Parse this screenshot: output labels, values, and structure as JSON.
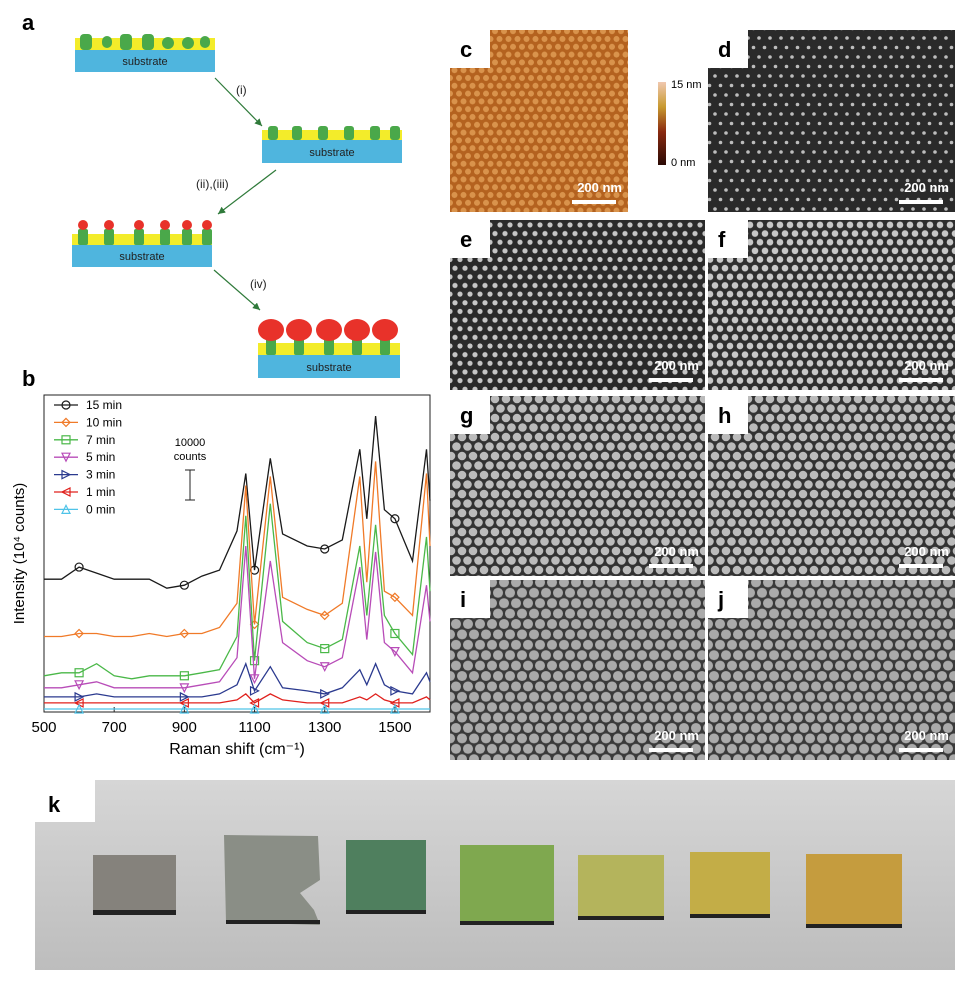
{
  "diagram": {
    "label": "a",
    "substrates": [
      "substrate",
      "substrate",
      "substrate",
      "substrate"
    ],
    "arrows": [
      "(i)",
      "(ii),(iii)",
      "(iv)"
    ]
  },
  "chart_label": "b",
  "chart_data": {
    "type": "line",
    "x_label": "Raman shift (cm⁻¹)",
    "y_label": "Intensity (10⁴ counts)",
    "annotations": [
      "10000",
      "counts"
    ],
    "x": [
      500,
      550,
      600,
      650,
      700,
      750,
      800,
      850,
      900,
      950,
      1000,
      1050,
      1075,
      1100,
      1145,
      1180,
      1250,
      1300,
      1350,
      1400,
      1420,
      1445,
      1470,
      1500,
      1550,
      1590,
      1600
    ],
    "xlim": [
      500,
      1600
    ],
    "xticks": [
      500,
      700,
      900,
      1100,
      1300,
      1500
    ],
    "ylim": [
      0,
      10.5
    ],
    "legend": "upper left",
    "series": [
      {
        "name": "15 min",
        "color": "#1a1a1a",
        "marker": "circle",
        "values": [
          4.4,
          4.4,
          4.8,
          4.6,
          4.4,
          4.4,
          4.4,
          4.1,
          4.2,
          4.5,
          4.7,
          6.0,
          7.9,
          4.7,
          8.4,
          5.9,
          5.5,
          5.4,
          5.7,
          8.7,
          6.4,
          9.8,
          6.7,
          6.4,
          5.0,
          8.7,
          7.0
        ]
      },
      {
        "name": "10 min",
        "color": "#f07a28",
        "marker": "diamond",
        "values": [
          2.5,
          2.5,
          2.6,
          2.6,
          2.5,
          2.5,
          2.6,
          2.5,
          2.6,
          2.6,
          2.8,
          3.6,
          7.5,
          2.9,
          7.8,
          3.8,
          3.4,
          3.2,
          3.6,
          7.8,
          4.3,
          8.3,
          4.0,
          3.8,
          3.2,
          7.9,
          5.5
        ]
      },
      {
        "name": "7 min",
        "color": "#4ab848",
        "marker": "square",
        "values": [
          1.2,
          1.3,
          1.3,
          1.6,
          1.2,
          1.1,
          1.2,
          1.2,
          1.2,
          1.3,
          1.4,
          2.5,
          6.5,
          1.7,
          6.9,
          3.0,
          2.3,
          2.1,
          2.4,
          5.5,
          3.2,
          6.2,
          3.2,
          2.6,
          1.9,
          5.8,
          4.0
        ]
      },
      {
        "name": "5 min",
        "color": "#b84cb8",
        "marker": "triangle-down",
        "values": [
          0.8,
          0.8,
          0.9,
          1.0,
          0.8,
          0.8,
          0.8,
          0.8,
          0.8,
          0.9,
          1.0,
          1.8,
          5.5,
          1.1,
          5.0,
          2.3,
          1.7,
          1.5,
          1.8,
          4.8,
          2.4,
          5.3,
          2.3,
          2.0,
          1.3,
          4.2,
          3.0
        ]
      },
      {
        "name": "3 min",
        "color": "#2b3a8f",
        "marker": "triangle-right",
        "values": [
          0.5,
          0.5,
          0.5,
          0.6,
          0.5,
          0.5,
          0.5,
          0.5,
          0.5,
          0.5,
          0.6,
          0.9,
          1.6,
          0.7,
          1.5,
          0.8,
          0.7,
          0.6,
          0.8,
          1.4,
          0.9,
          1.6,
          0.9,
          0.7,
          0.6,
          1.3,
          1.0
        ]
      },
      {
        "name": "1 min",
        "color": "#e0201c",
        "marker": "triangle-left",
        "values": [
          0.3,
          0.3,
          0.3,
          0.3,
          0.3,
          0.3,
          0.3,
          0.3,
          0.3,
          0.3,
          0.3,
          0.4,
          0.6,
          0.3,
          0.6,
          0.4,
          0.3,
          0.3,
          0.3,
          0.5,
          0.4,
          0.6,
          0.4,
          0.3,
          0.3,
          0.5,
          0.4
        ]
      },
      {
        "name": "0 min",
        "color": "#4fc3e8",
        "marker": "triangle-up",
        "values": [
          0.1,
          0.1,
          0.1,
          0.1,
          0.1,
          0.1,
          0.1,
          0.1,
          0.1,
          0.1,
          0.1,
          0.1,
          0.1,
          0.1,
          0.1,
          0.1,
          0.1,
          0.1,
          0.1,
          0.1,
          0.1,
          0.1,
          0.1,
          0.1,
          0.1,
          0.1,
          0.1
        ]
      }
    ]
  },
  "afm_colorbar": {
    "max": "15 nm",
    "min": "0 nm"
  },
  "sem_panels": [
    {
      "label": "c",
      "scale_bar": "200 nm"
    },
    {
      "label": "d",
      "scale_bar": "200 nm"
    },
    {
      "label": "e",
      "scale_bar": "200 nm"
    },
    {
      "label": "f",
      "scale_bar": "200 nm"
    },
    {
      "label": "g",
      "scale_bar": "200 nm"
    },
    {
      "label": "h",
      "scale_bar": "200 nm"
    },
    {
      "label": "i",
      "scale_bar": "200 nm"
    },
    {
      "label": "j",
      "scale_bar": "200 nm"
    }
  ],
  "photo": {
    "label": "k"
  }
}
